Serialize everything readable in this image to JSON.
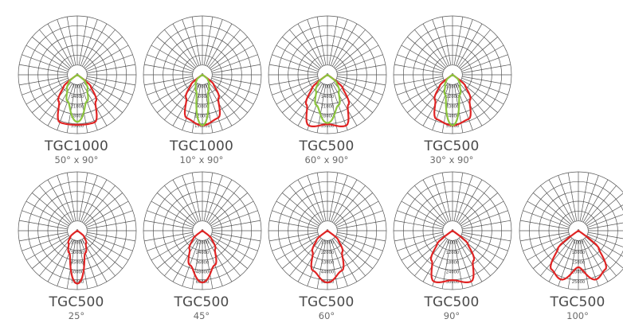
{
  "colors": {
    "red": "#e02424",
    "green": "#8cc63e",
    "grid": "#555555",
    "text": "#4a4a4a"
  },
  "diagrams": [
    {
      "model": "TGC1000",
      "angle": "50° x 90°",
      "center_label": "0",
      "ticks": [
        "7000",
        "14000",
        "21000",
        "28000",
        "35000"
      ],
      "curves": [
        {
          "color": "red",
          "shape": [
            0.85,
            0.86,
            0.55,
            0.3
          ]
        },
        {
          "color": "green",
          "shape": [
            0.8,
            0.48,
            0.3,
            0.18
          ]
        }
      ]
    },
    {
      "model": "TGC1000",
      "angle": "10° x 90°",
      "center_label": "0",
      "ticks": [
        "30000",
        "60000",
        "90000",
        "120000",
        "150000"
      ],
      "curves": [
        {
          "color": "red",
          "shape": [
            0.86,
            0.78,
            0.48,
            0.25
          ]
        },
        {
          "color": "green",
          "shape": [
            0.86,
            0.3,
            0.2,
            0.12
          ]
        }
      ]
    },
    {
      "model": "TGC500",
      "angle": "60° x 90°",
      "center_label": "0",
      "ticks": [
        "7000",
        "14000",
        "21000",
        "28000",
        "35000"
      ],
      "curves": [
        {
          "color": "red",
          "shape": [
            0.84,
            0.92,
            0.62,
            0.34
          ]
        },
        {
          "color": "green",
          "shape": [
            0.82,
            0.55,
            0.34,
            0.2
          ]
        }
      ]
    },
    {
      "model": "TGC500",
      "angle": "30° x 90°",
      "center_label": "0",
      "ticks": [
        "11000",
        "22000",
        "33000",
        "44000",
        "55000"
      ],
      "curves": [
        {
          "color": "red",
          "shape": [
            0.86,
            0.8,
            0.52,
            0.28
          ]
        },
        {
          "color": "green",
          "shape": [
            0.86,
            0.36,
            0.22,
            0.13
          ]
        }
      ]
    },
    {
      "model": "TGC500",
      "angle": "25°",
      "center_label": "0",
      "ticks": [
        "15000",
        "30000",
        "45000",
        "60000",
        "75000"
      ],
      "curves": [
        {
          "color": "red",
          "shape": [
            0.9,
            0.4,
            0.26,
            0.15
          ]
        }
      ]
    },
    {
      "model": "TGC500",
      "angle": "45°",
      "center_label": "0",
      "ticks": [
        "12000",
        "24000",
        "36000",
        "48000",
        "60000"
      ],
      "curves": [
        {
          "color": "red",
          "shape": [
            0.88,
            0.62,
            0.38,
            0.2
          ]
        }
      ]
    },
    {
      "model": "TGC500",
      "angle": "60°",
      "center_label": "0",
      "ticks": [
        "11000",
        "22000",
        "33000",
        "44000",
        "55000"
      ],
      "curves": [
        {
          "color": "red",
          "shape": [
            0.88,
            0.72,
            0.44,
            0.24
          ]
        }
      ]
    },
    {
      "model": "TGC500",
      "angle": "90°",
      "center_label": "0",
      "ticks": [
        "6000",
        "12000",
        "18000",
        "24000",
        "30000"
      ],
      "curves": [
        {
          "color": "red",
          "shape": [
            0.84,
            0.92,
            0.62,
            0.34
          ]
        }
      ]
    },
    {
      "model": "TGC500",
      "angle": "100°",
      "center_label": "0",
      "ticks": [
        "5000",
        "10000",
        "15000",
        "20000",
        "25000"
      ],
      "curves": [
        {
          "color": "red",
          "shape": [
            0.62,
            0.88,
            0.8,
            0.45
          ]
        }
      ]
    }
  ]
}
